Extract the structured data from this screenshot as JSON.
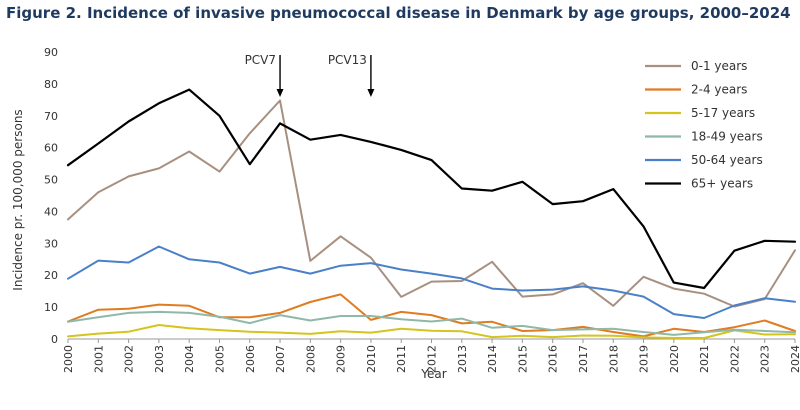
{
  "chart_data": {
    "type": "line",
    "title": "Figure 2. Incidence of invasive pneumococcal disease in Denmark by age groups, 2000–2024",
    "xlabel": "Year",
    "ylabel": "Incidence pr. 100,000 persons",
    "ylim": [
      0,
      90
    ],
    "yticks": [
      "0",
      "10",
      "20",
      "30",
      "40",
      "50",
      "60",
      "70",
      "80",
      "90"
    ],
    "x": [
      "2000",
      "2001",
      "2002",
      "2003",
      "2004",
      "2005",
      "2006",
      "2007",
      "2008",
      "2009",
      "2010",
      "2011",
      "2012",
      "2013",
      "2014",
      "2015",
      "2016",
      "2017",
      "2018",
      "2019",
      "2020",
      "2021",
      "2022",
      "2023",
      "2024"
    ],
    "grid": false,
    "legend_position": "top-right",
    "series": [
      {
        "name": "0-1 years",
        "color": "#a89080",
        "values": [
          37.5,
          46,
          51,
          53.5,
          58.8,
          52.5,
          64.5,
          74.8,
          24.5,
          32.2,
          25.5,
          13.2,
          18,
          18.2,
          24.2,
          13.3,
          14,
          17.5,
          10.4,
          19.5,
          15.8,
          14.2,
          10.2,
          12.5,
          27.8
        ]
      },
      {
        "name": "2-4 years",
        "color": "#e07b20",
        "values": [
          5.5,
          9.2,
          9.5,
          10.8,
          10.4,
          6.8,
          6.8,
          8.2,
          11.6,
          14,
          6,
          8.5,
          7.5,
          4.9,
          5.4,
          2.5,
          2.8,
          3.8,
          2.2,
          0.8,
          3.2,
          2.2,
          3.7,
          5.8,
          2.5
        ]
      },
      {
        "name": "5-17 years",
        "color": "#d4c41c",
        "values": [
          0.8,
          1.7,
          2.3,
          4.4,
          3.4,
          2.8,
          2.3,
          2,
          1.6,
          2.4,
          2,
          3.2,
          2.6,
          2.4,
          0.6,
          1,
          0.6,
          1.1,
          1,
          0.5,
          0.3,
          0.3,
          2.7,
          1.4,
          1.5
        ]
      },
      {
        "name": "18-49 years",
        "color": "#8fb8a8",
        "values": [
          5.4,
          6.8,
          8.2,
          8.5,
          8.2,
          7,
          5,
          7.5,
          5.8,
          7.2,
          7.2,
          6.2,
          5.5,
          6.4,
          3.5,
          4.1,
          2.8,
          3,
          3.2,
          2.2,
          1.3,
          2.1,
          2.9,
          2.5,
          2.1
        ]
      },
      {
        "name": "50-64 years",
        "color": "#4a80c8",
        "values": [
          18.9,
          24.6,
          24,
          29,
          25,
          24,
          20.5,
          22.6,
          20.5,
          23,
          23.8,
          21.8,
          20.5,
          19,
          15.8,
          15.2,
          15.5,
          16.5,
          15.2,
          13.3,
          7.8,
          6.6,
          10.5,
          12.8,
          11.7
        ]
      },
      {
        "name": "65+ years",
        "color": "#000000",
        "values": [
          54.5,
          61.3,
          68.2,
          73.9,
          78.2,
          70,
          54.8,
          67.6,
          62.5,
          64,
          61.8,
          59.3,
          56.1,
          47.2,
          46.5,
          49.3,
          42.3,
          43.2,
          47,
          35.3,
          17.7,
          16,
          27.7,
          30.8,
          30.5
        ]
      }
    ],
    "annotations": [
      {
        "text": "PCV7",
        "x": "2007"
      },
      {
        "text": "PCV13",
        "x": "2010"
      }
    ]
  }
}
